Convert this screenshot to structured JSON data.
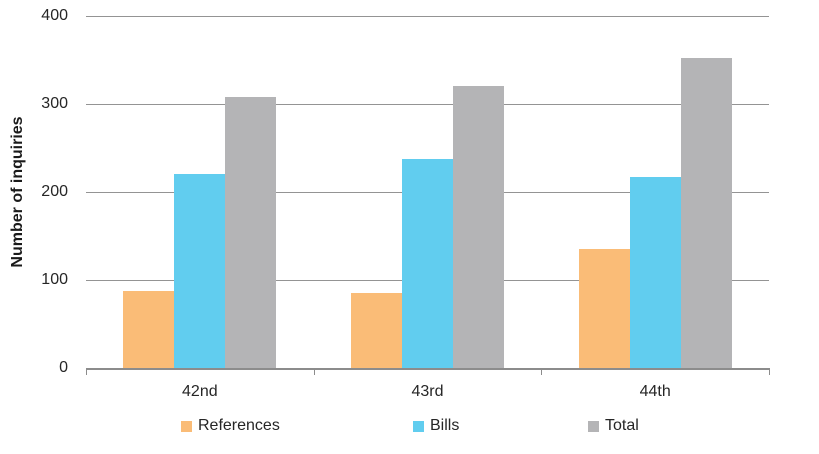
{
  "chart_data": {
    "type": "bar",
    "title": "",
    "categories": [
      "42nd",
      "43rd",
      "44th"
    ],
    "series": [
      {
        "name": "References",
        "color": "#FABC77",
        "values": [
          87,
          85,
          135
        ]
      },
      {
        "name": "Bills",
        "color": "#61CDEF",
        "values": [
          221,
          237,
          217
        ]
      },
      {
        "name": "Total",
        "color": "#B4B4B6",
        "values": [
          308,
          321,
          352
        ]
      }
    ],
    "xlabel": "",
    "ylabel": "Number of inquiries",
    "ylim": [
      0,
      400
    ],
    "yticks": [
      0,
      100,
      200,
      300,
      400
    ],
    "grid": true,
    "legend_position": "bottom"
  }
}
